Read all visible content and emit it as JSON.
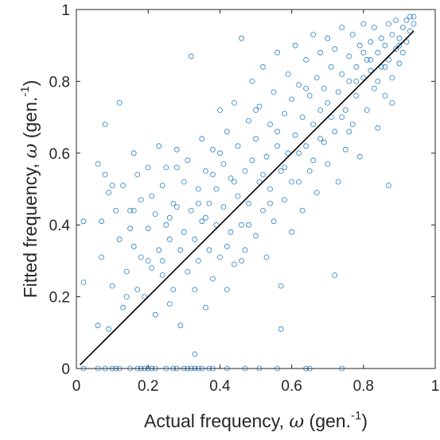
{
  "chart_data": {
    "type": "scatter",
    "title": "",
    "xlabel": {
      "main": "Actual frequency, ",
      "symbol": "ω",
      "unit": " (gen.",
      "sup": "-1",
      "close": ")"
    },
    "ylabel": {
      "main": "Fitted frequency, ",
      "symbol": "ω",
      "unit": " (gen.",
      "sup": "-1",
      "close": ")"
    },
    "xlim": [
      0,
      1
    ],
    "ylim": [
      0,
      1
    ],
    "xticks": [
      0,
      0.2,
      0.4,
      0.6,
      0.8,
      1
    ],
    "xtick_labels": [
      "0",
      "0.2",
      "0.4",
      "0.6",
      "0.8",
      "1"
    ],
    "yticks": [
      0,
      0.2,
      0.4,
      0.6,
      0.8,
      1
    ],
    "ytick_labels": [
      "0",
      "0.2",
      "0.4",
      "0.6",
      "0.8",
      "1"
    ],
    "grid": false,
    "marker_color": "#2b7fc4",
    "reference_line": {
      "from": [
        0.01,
        0.01
      ],
      "to": [
        0.94,
        0.94
      ],
      "color": "#000000"
    },
    "series": [
      {
        "marker": "open-circle",
        "points": [
          [
            0.02,
            0.41
          ],
          [
            0.02,
            0.24
          ],
          [
            0.06,
            0.57
          ],
          [
            0.06,
            0.12
          ],
          [
            0.07,
            0.31
          ],
          [
            0.07,
            0.41
          ],
          [
            0.08,
            0.68
          ],
          [
            0.08,
            0.54
          ],
          [
            0.09,
            0.49
          ],
          [
            0.09,
            0.11
          ],
          [
            0.1,
            0.51
          ],
          [
            0.1,
            0.23
          ],
          [
            0.11,
            0.44
          ],
          [
            0.12,
            0.36
          ],
          [
            0.12,
            0.74
          ],
          [
            0.13,
            0.51
          ],
          [
            0.13,
            0.17
          ],
          [
            0.14,
            0.27
          ],
          [
            0.15,
            0.39
          ],
          [
            0.15,
            0.44
          ],
          [
            0.16,
            0.6
          ],
          [
            0.16,
            0.34
          ],
          [
            0.17,
            0.22
          ],
          [
            0.17,
            0.54
          ],
          [
            0.18,
            0.31
          ],
          [
            0.18,
            0.47
          ],
          [
            0.19,
            0.2
          ],
          [
            0.2,
            0.39
          ],
          [
            0.2,
            0.56
          ],
          [
            0.21,
            0.28
          ],
          [
            0.21,
            0.48
          ],
          [
            0.22,
            0.15
          ],
          [
            0.22,
            0.43
          ],
          [
            0.23,
            0.33
          ],
          [
            0.23,
            0.62
          ],
          [
            0.24,
            0.51
          ],
          [
            0.24,
            0.26
          ],
          [
            0.25,
            0.56
          ],
          [
            0.25,
            0.4
          ],
          [
            0.26,
            0.18
          ],
          [
            0.26,
            0.36
          ],
          [
            0.27,
            0.46
          ],
          [
            0.27,
            0.22
          ],
          [
            0.28,
            0.61
          ],
          [
            0.28,
            0.45
          ],
          [
            0.29,
            0.33
          ],
          [
            0.29,
            0.12
          ],
          [
            0.3,
            0.52
          ],
          [
            0.3,
            0.38
          ],
          [
            0.31,
            0.27
          ],
          [
            0.31,
            0.58
          ],
          [
            0.32,
            0.44
          ],
          [
            0.32,
            0.87
          ],
          [
            0.33,
            0.22
          ],
          [
            0.33,
            0.36
          ],
          [
            0.34,
            0.5
          ],
          [
            0.34,
            0.3
          ],
          [
            0.35,
            0.64
          ],
          [
            0.35,
            0.41
          ],
          [
            0.36,
            0.17
          ],
          [
            0.36,
            0.55
          ],
          [
            0.37,
            0.46
          ],
          [
            0.37,
            0.33
          ],
          [
            0.38,
            0.61
          ],
          [
            0.38,
            0.25
          ],
          [
            0.39,
            0.5
          ],
          [
            0.39,
            0.4
          ],
          [
            0.4,
            0.72
          ],
          [
            0.4,
            0.31
          ],
          [
            0.41,
            0.57
          ],
          [
            0.41,
            0.45
          ],
          [
            0.42,
            0.22
          ],
          [
            0.42,
            0.66
          ],
          [
            0.43,
            0.38
          ],
          [
            0.43,
            0.53
          ],
          [
            0.44,
            0.74
          ],
          [
            0.44,
            0.29
          ],
          [
            0.45,
            0.48
          ],
          [
            0.45,
            0.62
          ],
          [
            0.46,
            0.4
          ],
          [
            0.46,
            0.92
          ],
          [
            0.47,
            0.55
          ],
          [
            0.47,
            0.33
          ],
          [
            0.48,
            0.69
          ],
          [
            0.48,
            0.46
          ],
          [
            0.49,
            0.58
          ],
          [
            0.49,
            0.8
          ],
          [
            0.5,
            0.37
          ],
          [
            0.5,
            0.64
          ],
          [
            0.51,
            0.52
          ],
          [
            0.51,
            0.73
          ],
          [
            0.52,
            0.44
          ],
          [
            0.52,
            0.84
          ],
          [
            0.53,
            0.59
          ],
          [
            0.53,
            0.31
          ],
          [
            0.54,
            0.68
          ],
          [
            0.54,
            0.5
          ],
          [
            0.55,
            0.77
          ],
          [
            0.55,
            0.41
          ],
          [
            0.56,
            0.62
          ],
          [
            0.56,
            0.88
          ],
          [
            0.57,
            0.55
          ],
          [
            0.57,
            0.23
          ],
          [
            0.58,
            0.71
          ],
          [
            0.58,
            0.47
          ],
          [
            0.59,
            0.82
          ],
          [
            0.59,
            0.6
          ],
          [
            0.6,
            0.38
          ],
          [
            0.6,
            0.75
          ],
          [
            0.61,
            0.65
          ],
          [
            0.61,
            0.9
          ],
          [
            0.62,
            0.52
          ],
          [
            0.62,
            0.79
          ],
          [
            0.63,
            0.7
          ],
          [
            0.63,
            0.44
          ],
          [
            0.64,
            0.86
          ],
          [
            0.64,
            0.62
          ],
          [
            0.65,
            0.76
          ],
          [
            0.65,
            0.55
          ],
          [
            0.66,
            0.93
          ],
          [
            0.66,
            0.68
          ],
          [
            0.67,
            0.81
          ],
          [
            0.67,
            0.49
          ],
          [
            0.68,
            0.72
          ],
          [
            0.68,
            0.88
          ],
          [
            0.69,
            0.63
          ],
          [
            0.69,
            0.78
          ],
          [
            0.7,
            0.92
          ],
          [
            0.7,
            0.57
          ],
          [
            0.71,
            0.84
          ],
          [
            0.71,
            0.7
          ],
          [
            0.72,
            0.66
          ],
          [
            0.72,
            0.89
          ],
          [
            0.73,
            0.77
          ],
          [
            0.73,
            0.52
          ],
          [
            0.74,
            0.95
          ],
          [
            0.74,
            0.82
          ],
          [
            0.75,
            0.72
          ],
          [
            0.75,
            0.61
          ],
          [
            0.76,
            0.87
          ],
          [
            0.76,
            0.8
          ],
          [
            0.77,
            0.93
          ],
          [
            0.77,
            0.68
          ],
          [
            0.78,
            0.84
          ],
          [
            0.78,
            0.76
          ],
          [
            0.79,
            0.9
          ],
          [
            0.79,
            0.59
          ],
          [
            0.8,
            0.81
          ],
          [
            0.8,
            0.96
          ],
          [
            0.81,
            0.86
          ],
          [
            0.81,
            0.72
          ],
          [
            0.82,
            0.91
          ],
          [
            0.82,
            0.83
          ],
          [
            0.83,
            0.78
          ],
          [
            0.83,
            0.95
          ],
          [
            0.84,
            0.88
          ],
          [
            0.84,
            0.67
          ],
          [
            0.85,
            0.92
          ],
          [
            0.85,
            0.84
          ],
          [
            0.86,
            0.9
          ],
          [
            0.86,
            0.76
          ],
          [
            0.87,
            0.96
          ],
          [
            0.87,
            0.86
          ],
          [
            0.88,
            0.93
          ],
          [
            0.88,
            0.81
          ],
          [
            0.89,
            0.89
          ],
          [
            0.89,
            0.97
          ],
          [
            0.9,
            0.92
          ],
          [
            0.9,
            0.85
          ],
          [
            0.91,
            0.95
          ],
          [
            0.91,
            0.88
          ],
          [
            0.92,
            0.97
          ],
          [
            0.92,
            0.91
          ],
          [
            0.93,
            0.94
          ],
          [
            0.93,
            0.98
          ],
          [
            0.94,
            0.96
          ],
          [
            0.94,
            0.98
          ],
          [
            0.16,
            0.44
          ],
          [
            0.24,
            0.3
          ],
          [
            0.36,
            0.42
          ],
          [
            0.44,
            0.52
          ],
          [
            0.52,
            0.54
          ],
          [
            0.58,
            0.56
          ],
          [
            0.62,
            0.6
          ],
          [
            0.66,
            0.58
          ],
          [
            0.7,
            0.74
          ],
          [
            0.74,
            0.7
          ],
          [
            0.78,
            0.8
          ],
          [
            0.82,
            0.86
          ],
          [
            0.86,
            0.84
          ],
          [
            0.9,
            0.9
          ],
          [
            0.33,
            0.04
          ],
          [
            0.72,
            0.26
          ],
          [
            0.57,
            0.11
          ],
          [
            0.87,
            0.51
          ],
          [
            0.46,
            0.3
          ],
          [
            0.38,
            0.54
          ],
          [
            0.28,
            0.56
          ],
          [
            0.4,
            0.6
          ],
          [
            0.5,
            0.72
          ],
          [
            0.56,
            0.66
          ],
          [
            0.64,
            0.78
          ],
          [
            0.68,
            0.64
          ],
          [
            0.8,
            0.88
          ],
          [
            0.84,
            0.8
          ],
          [
            0.48,
            0.4
          ],
          [
            0.34,
            0.46
          ],
          [
            0.26,
            0.42
          ],
          [
            0.2,
            0.3
          ],
          [
            0.14,
            0.2
          ],
          [
            0.42,
            0.34
          ],
          [
            0.54,
            0.46
          ],
          [
            0.6,
            0.52
          ],
          [
            0.76,
            0.66
          ],
          [
            0.88,
            0.74
          ],
          [
            0.02,
            0.0
          ],
          [
            0.06,
            0.0
          ],
          [
            0.08,
            0.0
          ],
          [
            0.1,
            0.0
          ],
          [
            0.11,
            0.0
          ],
          [
            0.12,
            0.0
          ],
          [
            0.15,
            0.0
          ],
          [
            0.17,
            0.0
          ],
          [
            0.18,
            0.0
          ],
          [
            0.19,
            0.0
          ],
          [
            0.2,
            0.0
          ],
          [
            0.21,
            0.0
          ],
          [
            0.22,
            0.0
          ],
          [
            0.25,
            0.0
          ],
          [
            0.27,
            0.0
          ],
          [
            0.28,
            0.0
          ],
          [
            0.3,
            0.0
          ],
          [
            0.31,
            0.0
          ],
          [
            0.32,
            0.0
          ],
          [
            0.33,
            0.0
          ],
          [
            0.34,
            0.0
          ],
          [
            0.35,
            0.0
          ],
          [
            0.37,
            0.0
          ],
          [
            0.38,
            0.0
          ],
          [
            0.42,
            0.0
          ],
          [
            0.47,
            0.0
          ],
          [
            0.51,
            0.0
          ],
          [
            0.56,
            0.0
          ],
          [
            0.64,
            0.0
          ],
          [
            0.65,
            0.0
          ],
          [
            0.74,
            0.0
          ]
        ]
      }
    ]
  }
}
